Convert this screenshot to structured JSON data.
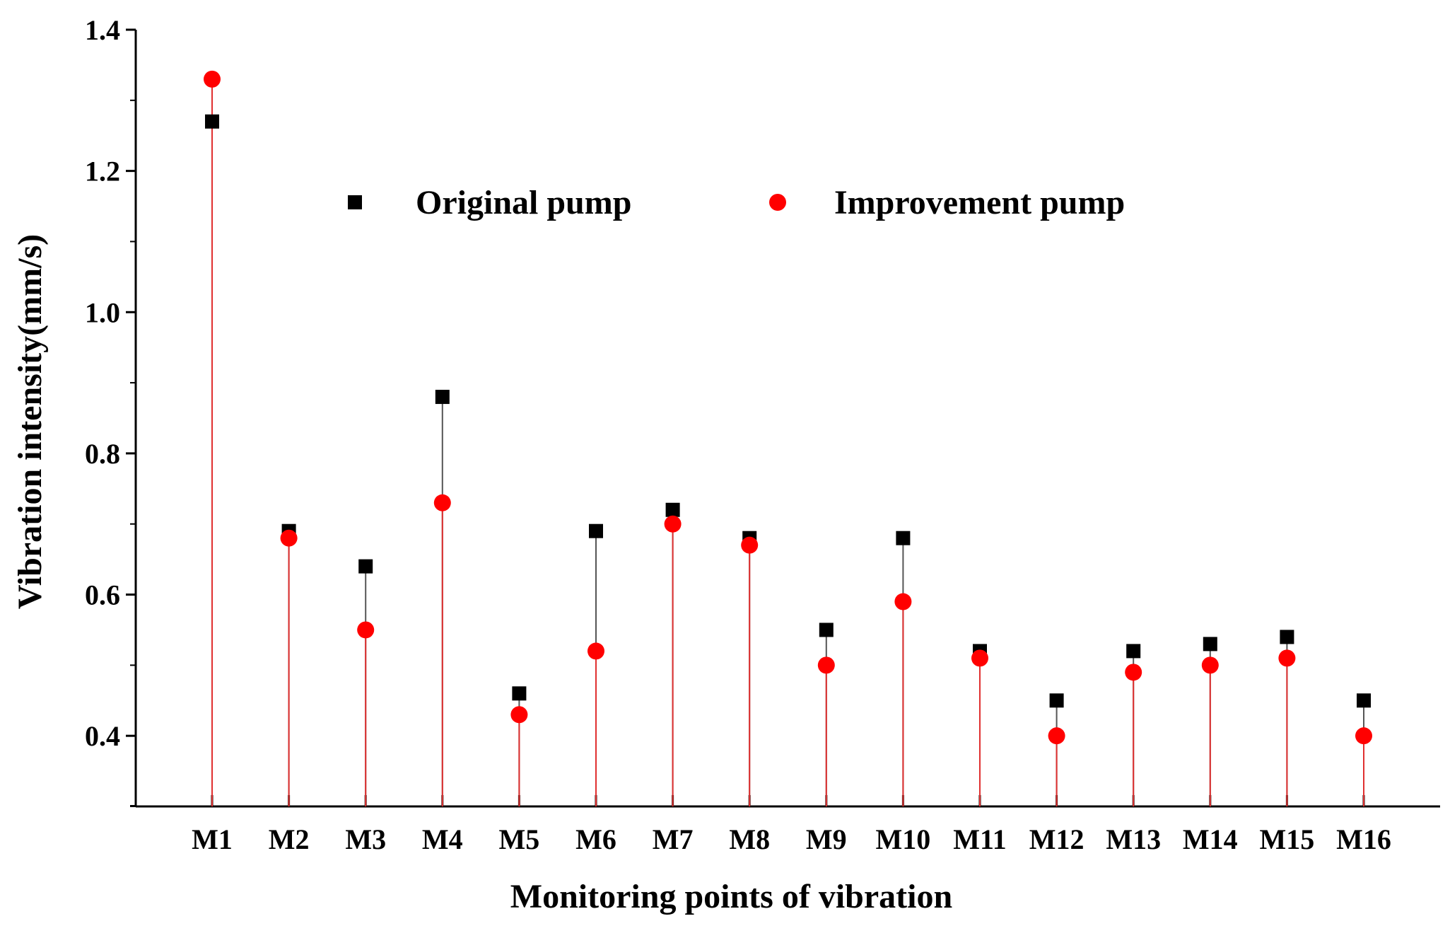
{
  "chart_data": {
    "type": "scatter",
    "title": "",
    "xlabel": "Monitoring points of vibration",
    "ylabel": "Vibration intensity(mm/s)",
    "categories": [
      "M1",
      "M2",
      "M3",
      "M4",
      "M5",
      "M6",
      "M7",
      "M8",
      "M9",
      "M10",
      "M11",
      "M12",
      "M13",
      "M14",
      "M15",
      "M16"
    ],
    "ylim": [
      0.3,
      1.4
    ],
    "yticks": [
      {
        "value": 0.4,
        "label": "0.4"
      },
      {
        "value": 0.6,
        "label": "0.6"
      },
      {
        "value": 0.8,
        "label": "0.8"
      },
      {
        "value": 1.0,
        "label": "1.0"
      },
      {
        "value": 1.2,
        "label": "1.2"
      },
      {
        "value": 1.4,
        "label": "1.4"
      }
    ],
    "series": [
      {
        "name": "Original pump",
        "marker": "square",
        "color": "#000000",
        "drop_line_color": "#555555",
        "values": [
          1.27,
          0.69,
          0.64,
          0.88,
          0.46,
          0.69,
          0.72,
          0.68,
          0.55,
          0.68,
          0.52,
          0.45,
          0.52,
          0.53,
          0.54,
          0.45
        ]
      },
      {
        "name": "Improvement pump",
        "marker": "circle",
        "color": "#ff0000",
        "drop_line_color": "#e03030",
        "values": [
          1.33,
          0.68,
          0.55,
          0.73,
          0.43,
          0.52,
          0.7,
          0.67,
          0.5,
          0.59,
          0.51,
          0.4,
          0.49,
          0.5,
          0.51,
          0.4
        ]
      }
    ],
    "legend": {
      "position": "top-center",
      "orientation": "horizontal"
    },
    "grid": false
  }
}
